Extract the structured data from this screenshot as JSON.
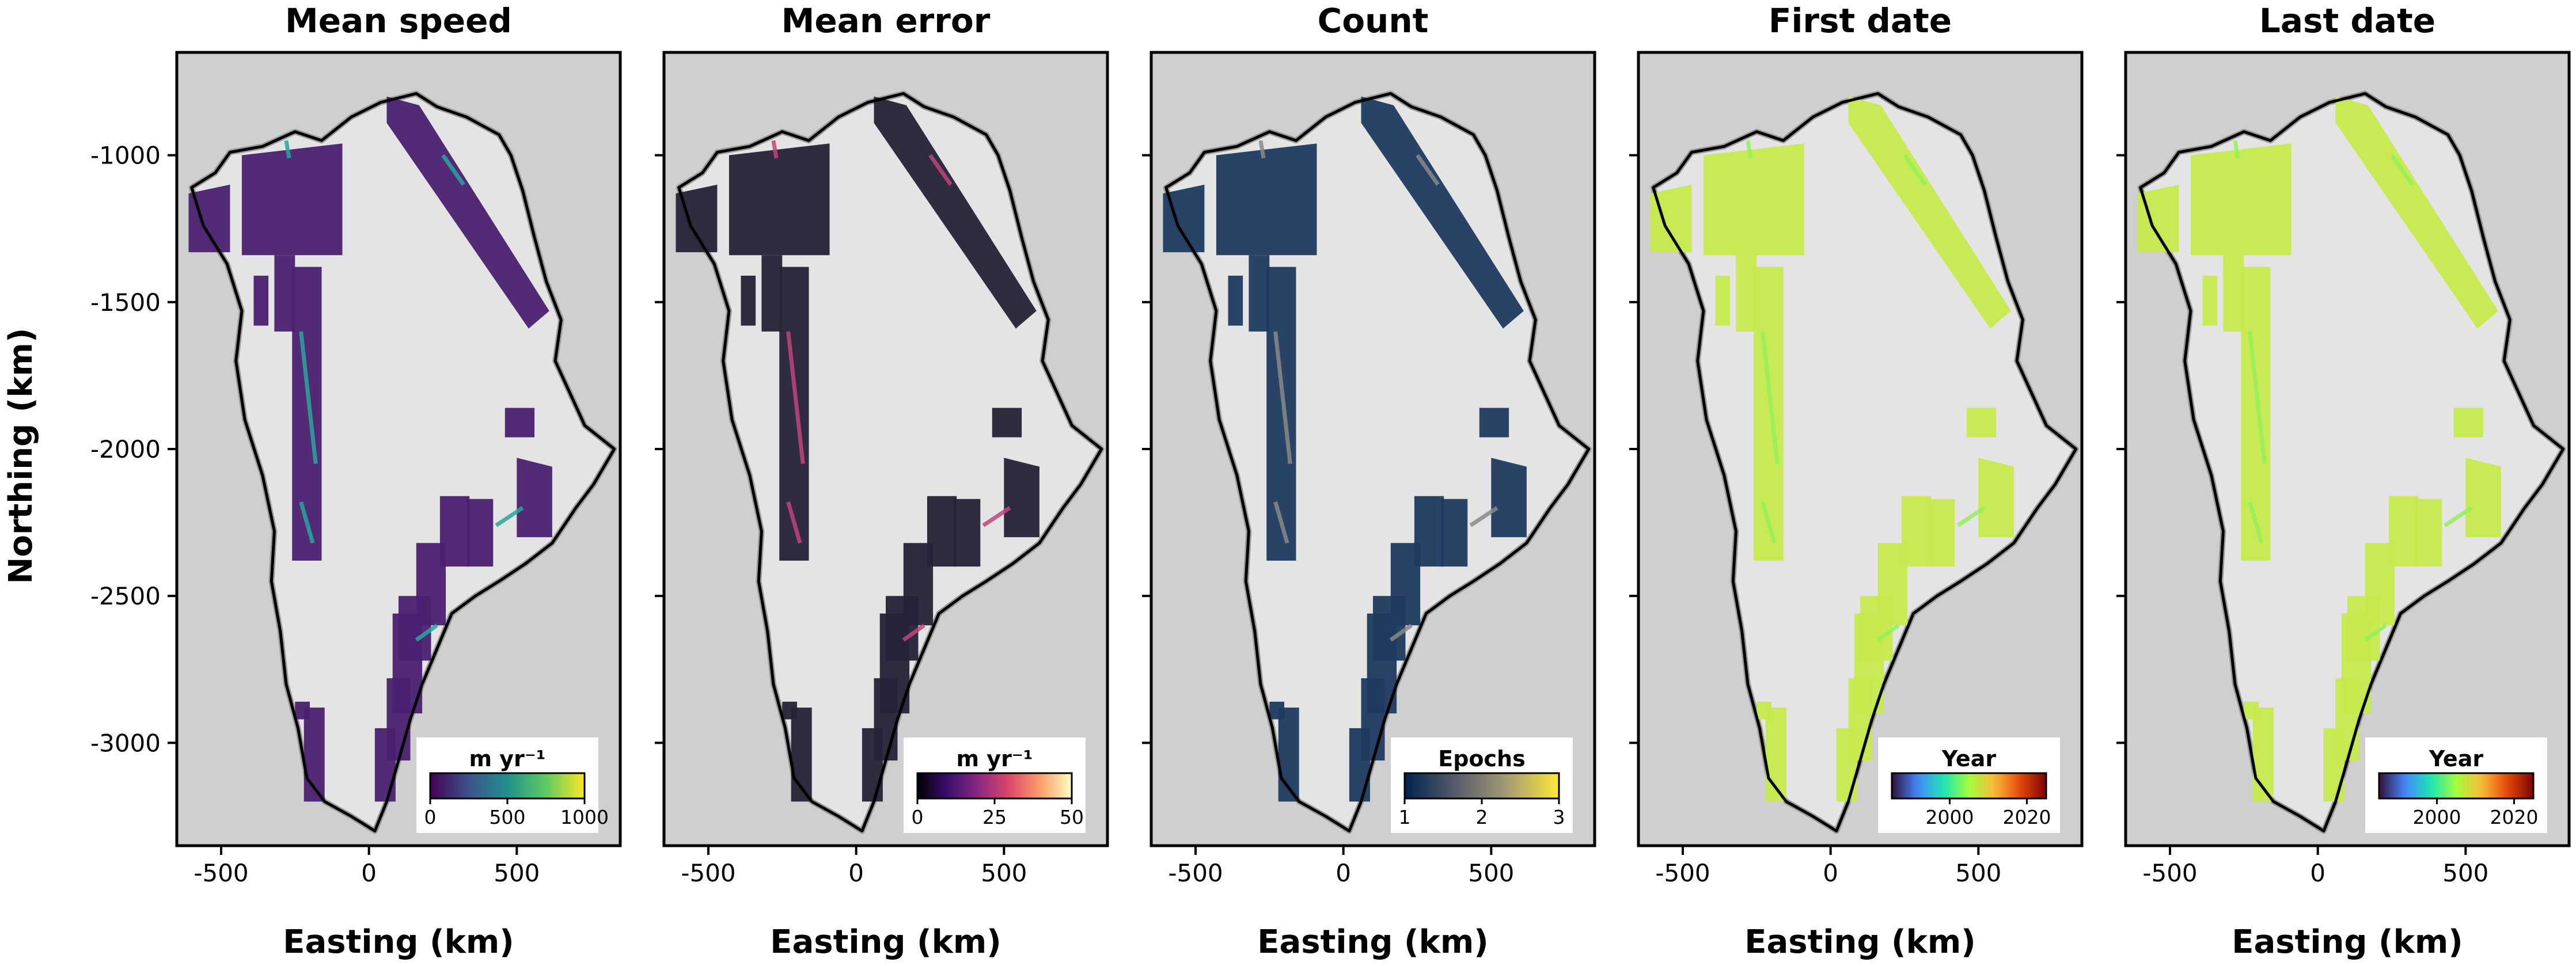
{
  "chart_data": [
    {
      "type": "heatmap",
      "title": "Mean speed",
      "xlabel": "Easting (km)",
      "ylabel": "Northing (km)",
      "xlim": [
        -650,
        850
      ],
      "ylim": [
        -3350,
        -650
      ],
      "xticks": [
        -500,
        0,
        500
      ],
      "yticks": [
        -1000,
        -1500,
        -2000,
        -2500,
        -3000
      ],
      "colorbar": {
        "label": "m yr⁻¹",
        "ticks": [
          0,
          500,
          1000
        ],
        "range": [
          0,
          1000
        ],
        "colors": [
          "#440154",
          "#3b528b",
          "#21918c",
          "#5ec962",
          "#fde725"
        ]
      },
      "fill_color": "#4a2070",
      "accent_color": "#2aa7a0"
    },
    {
      "type": "heatmap",
      "title": "Mean error",
      "xlabel": "Easting (km)",
      "xlim": [
        -650,
        850
      ],
      "ylim": [
        -3350,
        -650
      ],
      "xticks": [
        -500,
        0,
        500
      ],
      "yticks": [
        -1000,
        -1500,
        -2000,
        -2500,
        -3000
      ],
      "colorbar": {
        "label": "m yr⁻¹",
        "ticks": [
          0,
          25,
          50
        ],
        "range": [
          0,
          50
        ],
        "colors": [
          "#000004",
          "#3b0f70",
          "#8c2981",
          "#de4968",
          "#fe9f6d",
          "#fcfdbf"
        ]
      },
      "fill_color": "#262237",
      "accent_color": "#c0457a"
    },
    {
      "type": "heatmap",
      "title": "Count",
      "xlabel": "Easting (km)",
      "xlim": [
        -650,
        850
      ],
      "ylim": [
        -3350,
        -650
      ],
      "xticks": [
        -500,
        0,
        500
      ],
      "yticks": [
        -1000,
        -1500,
        -2000,
        -2500,
        -3000
      ],
      "colorbar": {
        "label": "Epochs",
        "ticks": [
          1,
          2,
          3
        ],
        "range": [
          1,
          3
        ],
        "colors": [
          "#00224e",
          "#575c6d",
          "#a59c74",
          "#fee838"
        ]
      },
      "fill_color": "#1f3a5f",
      "accent_color": "#8a8a8a"
    },
    {
      "type": "heatmap",
      "title": "First date",
      "xlabel": "Easting (km)",
      "xlim": [
        -650,
        850
      ],
      "ylim": [
        -3350,
        -650
      ],
      "xticks": [
        -500,
        0,
        500
      ],
      "yticks": [
        -1000,
        -1500,
        -2000,
        -2500,
        -3000
      ],
      "colorbar": {
        "label": "Year",
        "ticks": [
          2000,
          2020
        ],
        "range": [
          1985,
          2025
        ],
        "colors": [
          "#30123b",
          "#4686fb",
          "#1be5b5",
          "#a4fc3c",
          "#fbb938",
          "#e4460a",
          "#7a0403"
        ]
      },
      "fill_color": "#c6ea4c",
      "accent_color": "#94f05a"
    },
    {
      "type": "heatmap",
      "title": "Last date",
      "xlabel": "Easting (km)",
      "xlim": [
        -650,
        850
      ],
      "ylim": [
        -3350,
        -650
      ],
      "xticks": [
        -500,
        0,
        500
      ],
      "yticks": [
        -1000,
        -1500,
        -2000,
        -2500,
        -3000
      ],
      "colorbar": {
        "label": "Year",
        "ticks": [
          2000,
          2020
        ],
        "range": [
          1985,
          2025
        ],
        "colors": [
          "#30123b",
          "#4686fb",
          "#1be5b5",
          "#a4fc3c",
          "#fbb938",
          "#e4460a",
          "#7a0403"
        ]
      },
      "fill_color": "#c6ea4c",
      "accent_color": "#94f05a"
    }
  ],
  "colors": {
    "panel_background": "#cfcfcf",
    "ice_sheet": "#e4e4e4",
    "coastline": "#000000"
  }
}
